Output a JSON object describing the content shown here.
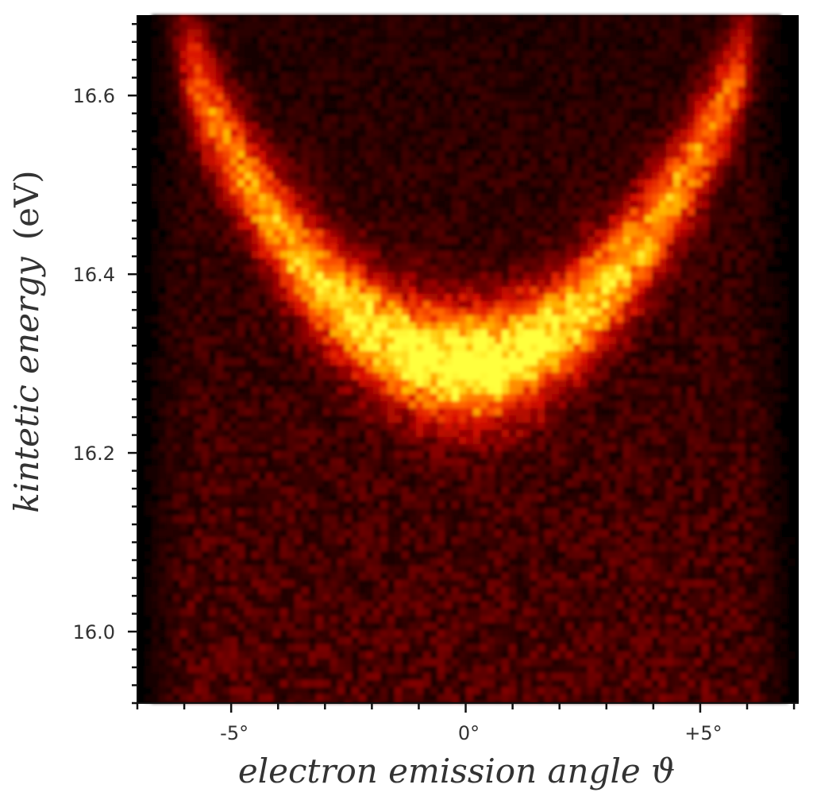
{
  "chart_data": {
    "type": "heatmap",
    "title": "",
    "xlabel": "electron emission angle ϑ",
    "ylabel": "kintetic energy",
    "ylabel_unit": "(eV)",
    "x_ticks": [
      {
        "value": -5,
        "label": "-5°"
      },
      {
        "value": 0,
        "label": "0°"
      },
      {
        "value": 5,
        "label": "+5°"
      }
    ],
    "y_ticks": [
      {
        "value": 16.0,
        "label": "16.0"
      },
      {
        "value": 16.2,
        "label": "16.2"
      },
      {
        "value": 16.4,
        "label": "16.4"
      },
      {
        "value": 16.6,
        "label": "16.6"
      }
    ],
    "xlim": [
      -7.0,
      7.1
    ],
    "ylim": [
      15.92,
      16.69
    ],
    "x_minor_step": 1,
    "y_minor_step": 0.02,
    "colormap": [
      "#000000",
      "#3a0000",
      "#8a0000",
      "#d81000",
      "#ff5a00",
      "#ffb400",
      "#ffff3c"
    ],
    "band": {
      "shape": "parabola",
      "vertex_angle": 0,
      "vertex_energy": 16.3,
      "curvature_eV_per_deg2": 0.0095,
      "angle_range": [
        -5.7,
        5.7
      ],
      "width_eV": 0.045,
      "peak_intensity_at_vertex": 1.0,
      "edge_intensity": 0.55
    },
    "grid": false,
    "legend": "none"
  }
}
